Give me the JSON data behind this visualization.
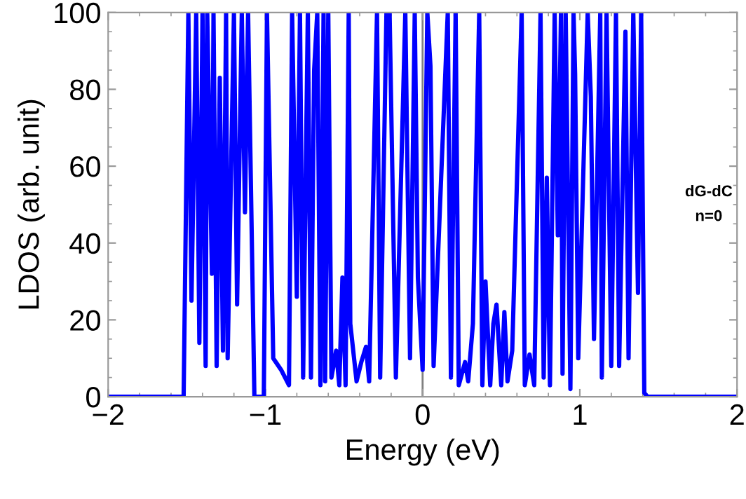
{
  "chart_data": {
    "type": "line",
    "xlabel": "Energy (eV)",
    "ylabel": "LDOS (arb. unit)",
    "xlim": [
      -2,
      2
    ],
    "xticks": [
      {
        "value": -2,
        "label": "−2"
      },
      {
        "value": -1,
        "label": "−1"
      },
      0,
      1,
      2
    ],
    "ylim": [
      0,
      100
    ],
    "yticks": [
      0,
      20,
      40,
      60,
      80,
      100
    ],
    "grid": false,
    "legend": false,
    "marker": "none",
    "line_style": "solid",
    "annotations": [
      "dG-dC\nn=0"
    ],
    "ref_lines": [
      {
        "axis": "x",
        "value": 0,
        "color": "#808080"
      }
    ],
    "series": [
      {
        "color": "#0000ff",
        "x": [
          -2,
          -1.52,
          -1.49,
          -1.47,
          -1.44,
          -1.42,
          -1.4,
          -1.38,
          -1.37,
          -1.34,
          -1.33,
          -1.31,
          -1.29,
          -1.27,
          -1.25,
          -1.24,
          -1.2,
          -1.18,
          -1.15,
          -1.13,
          -1.11,
          -1.07,
          -1.01,
          -0.99,
          -0.95,
          -0.9,
          -0.85,
          -0.83,
          -0.8,
          -0.78,
          -0.76,
          -0.73,
          -0.71,
          -0.69,
          -0.67,
          -0.65,
          -0.63,
          -0.62,
          -0.6,
          -0.58,
          -0.55,
          -0.53,
          -0.51,
          -0.49,
          -0.47,
          -0.46,
          -0.42,
          -0.39,
          -0.36,
          -0.34,
          -0.29,
          -0.27,
          -0.23,
          -0.21,
          -0.17,
          -0.11,
          -0.08,
          -0.05,
          -0.03,
          0.0,
          0.03,
          0.05,
          0.07,
          0.16,
          0.18,
          0.21,
          0.23,
          0.27,
          0.29,
          0.32,
          0.36,
          0.38,
          0.4,
          0.43,
          0.45,
          0.47,
          0.5,
          0.52,
          0.54,
          0.57,
          0.63,
          0.65,
          0.68,
          0.71,
          0.75,
          0.77,
          0.79,
          0.81,
          0.84,
          0.86,
          0.88,
          0.89,
          0.91,
          0.94,
          0.96,
          0.97,
          0.99,
          1.05,
          1.07,
          1.09,
          1.13,
          1.14,
          1.17,
          1.2,
          1.23,
          1.25,
          1.29,
          1.31,
          1.34,
          1.37,
          1.39,
          1.41,
          1.43,
          2
        ],
        "values": [
          0,
          0,
          100,
          25,
          100,
          14,
          100,
          8,
          100,
          32,
          100,
          8,
          83,
          12,
          100,
          10,
          100,
          24,
          100,
          48,
          100,
          0,
          0,
          100,
          10,
          7,
          3,
          100,
          26,
          100,
          5,
          100,
          5,
          85,
          100,
          3,
          100,
          4,
          100,
          5,
          12,
          3,
          31,
          3,
          100,
          19,
          4,
          9,
          13,
          4,
          100,
          5,
          100,
          100,
          5,
          100,
          10,
          100,
          31,
          7,
          100,
          86,
          8,
          100,
          5,
          100,
          3,
          9,
          4,
          19,
          100,
          3,
          30,
          3,
          19,
          24,
          3,
          22,
          4,
          12,
          100,
          3,
          11,
          3,
          100,
          5,
          57,
          3,
          100,
          42,
          100,
          6,
          100,
          2,
          100,
          84,
          10,
          100,
          78,
          15,
          100,
          5,
          100,
          8,
          100,
          8,
          95,
          10,
          100,
          27,
          100,
          1,
          0,
          0
        ]
      }
    ]
  }
}
